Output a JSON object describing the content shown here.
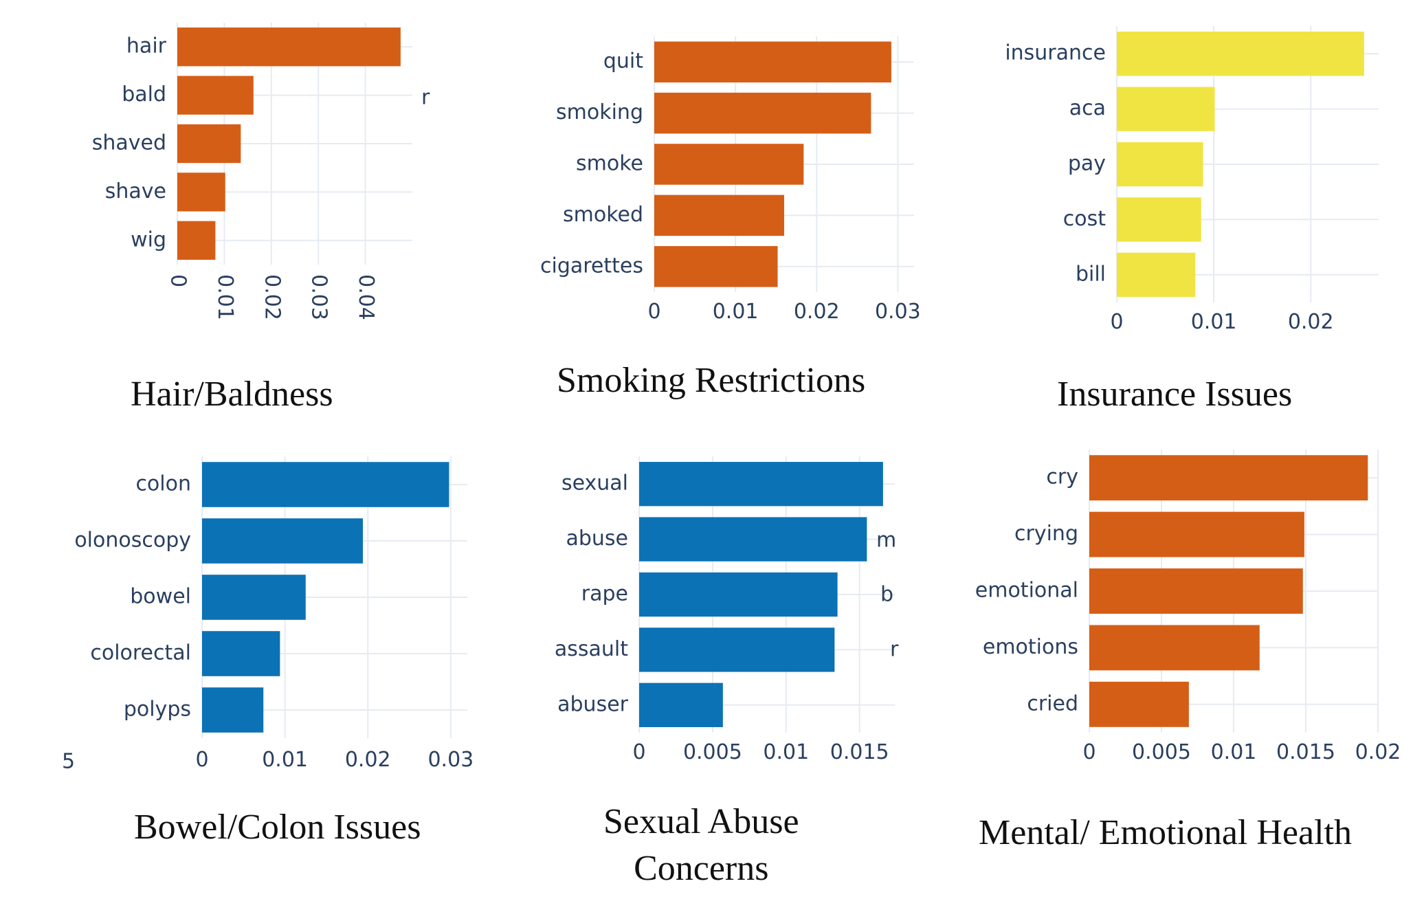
{
  "chart_data": [
    {
      "type": "bar",
      "orientation": "horizontal",
      "caption": "Hair/Baldness",
      "categories": [
        "hair",
        "bald",
        "shaved",
        "shave",
        "wig"
      ],
      "values": [
        0.0475,
        0.0162,
        0.0135,
        0.0102,
        0.0081
      ],
      "color": "#d55e17",
      "xlim": [
        0,
        0.05
      ],
      "xticks": [
        0,
        0.01,
        0.02,
        0.03,
        0.04
      ],
      "xtick_labels": [
        "0",
        "0.01",
        "0.02",
        "0.03",
        "0.04"
      ],
      "xtick_rotation": 90,
      "grid": true,
      "clipped_fragments": [
        "r"
      ]
    },
    {
      "type": "bar",
      "orientation": "horizontal",
      "caption": "Smoking Restrictions",
      "categories": [
        "quit",
        "smoking",
        "smoke",
        "smoked",
        "cigarettes"
      ],
      "values": [
        0.0292,
        0.0267,
        0.0184,
        0.016,
        0.0152
      ],
      "color": "#d55e17",
      "xlim": [
        0,
        0.032
      ],
      "xticks": [
        0,
        0.01,
        0.02,
        0.03
      ],
      "xtick_labels": [
        "0",
        "0.01",
        "0.02",
        "0.03"
      ],
      "grid": true
    },
    {
      "type": "bar",
      "orientation": "horizontal",
      "caption": "Insurance Issues",
      "categories": [
        "insurance",
        "aca",
        "pay",
        "cost",
        "bill"
      ],
      "values": [
        0.0255,
        0.0101,
        0.0089,
        0.0087,
        0.0081
      ],
      "color": "#f0e442",
      "xlim": [
        0,
        0.027
      ],
      "xticks": [
        0,
        0.01,
        0.02
      ],
      "xtick_labels": [
        "0",
        "0.01",
        "0.02"
      ],
      "grid": true
    },
    {
      "type": "bar",
      "orientation": "horizontal",
      "caption": "Bowel/Colon Issues",
      "categories": [
        "colon",
        "olonoscopy",
        "bowel",
        "colorectal",
        "polyps"
      ],
      "values": [
        0.0298,
        0.0194,
        0.0125,
        0.0094,
        0.0074
      ],
      "color": "#0b72b5",
      "xlim": [
        0,
        0.032
      ],
      "xticks": [
        0,
        0.01,
        0.02,
        0.03
      ],
      "xtick_labels": [
        "0",
        "0.01",
        "0.02",
        "0.03"
      ],
      "grid": true,
      "clipped_fragments": [
        "5"
      ]
    },
    {
      "type": "bar",
      "orientation": "horizontal",
      "caption": [
        "Sexual Abuse",
        "Concerns"
      ],
      "categories": [
        "sexual",
        "abuse",
        "rape",
        "assault",
        "abuser"
      ],
      "values": [
        0.0166,
        0.0155,
        0.0135,
        0.0133,
        0.0057
      ],
      "color": "#0b72b5",
      "xlim": [
        0,
        0.0174
      ],
      "xticks": [
        0,
        0.005,
        0.01,
        0.015
      ],
      "xtick_labels": [
        "0",
        "0.005",
        "0.01",
        "0.015"
      ],
      "grid": true,
      "clipped_fragments": [
        "m",
        "b",
        "r"
      ]
    },
    {
      "type": "bar",
      "orientation": "horizontal",
      "caption": "Mental/ Emotional Health",
      "categories": [
        "cry",
        "crying",
        "emotional",
        "emotions",
        "cried"
      ],
      "values": [
        0.0193,
        0.0149,
        0.0148,
        0.0118,
        0.0069
      ],
      "color": "#d55e17",
      "xlim": [
        0,
        0.02
      ],
      "xticks": [
        0,
        0.005,
        0.01,
        0.015,
        0.02
      ],
      "xtick_labels": [
        "0",
        "0.005",
        "0.01",
        "0.015",
        "0.02"
      ],
      "grid": true
    }
  ]
}
